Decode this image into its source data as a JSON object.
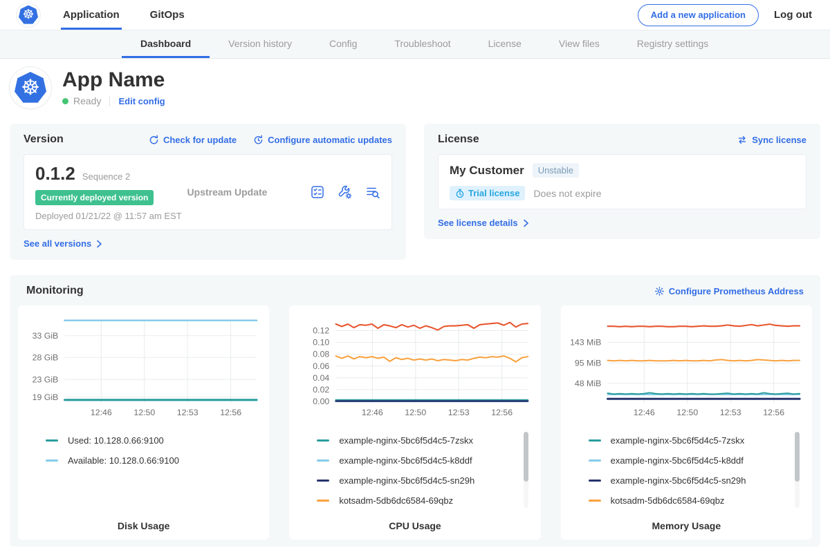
{
  "topnav": {
    "tabs": [
      {
        "label": "Application",
        "active": true
      },
      {
        "label": "GitOps",
        "active": false
      }
    ],
    "add_app_button": "Add a new application",
    "logout": "Log out"
  },
  "subnav": {
    "tabs": [
      "Dashboard",
      "Version history",
      "Config",
      "Troubleshoot",
      "License",
      "View files",
      "Registry settings"
    ],
    "active": "Dashboard"
  },
  "app_header": {
    "title": "App Name",
    "status": "Ready",
    "edit_config": "Edit config"
  },
  "version_card": {
    "title": "Version",
    "check_for_update": "Check for update",
    "configure_auto_updates": "Configure automatic updates",
    "version": "0.1.2",
    "sequence": "Sequence 2",
    "deployed_badge": "Currently deployed version",
    "deployed_at": "Deployed 01/21/22 @ 11:57 am EST",
    "update_type": "Upstream Update",
    "see_all": "See all versions"
  },
  "license_card": {
    "title": "License",
    "sync": "Sync license",
    "customer": "My Customer",
    "channel_badge": "Unstable",
    "type_badge": "Trial license",
    "expiry": "Does not expire",
    "see_details": "See license details"
  },
  "monitoring": {
    "title": "Monitoring",
    "configure_prometheus": "Configure Prometheus Address"
  },
  "colors": {
    "accent_blue": "#326de6",
    "k8s_blue": "#3371e3",
    "deployed_badge_green": "#3ec18f",
    "ready_dot_green": "#44c474",
    "teal": "#2a9d9d",
    "light_blue": "#85cbea",
    "navy": "#24336e",
    "orange": "#f9a13e",
    "red_orange": "#e8562e"
  },
  "chart_data": [
    {
      "type": "line",
      "title": "Disk Usage",
      "ylim": [
        17.6,
        36.7
      ],
      "y_ticks": [
        {
          "v": 33,
          "label": "33 GiB"
        },
        {
          "v": 28,
          "label": "28 GiB"
        },
        {
          "v": 23,
          "label": "23 GiB"
        },
        {
          "v": 19,
          "label": "19 GiB"
        }
      ],
      "x_ticks": [
        {
          "f": 0.19,
          "label": "12:46"
        },
        {
          "f": 0.415,
          "label": "12:50"
        },
        {
          "f": 0.64,
          "label": "12:53"
        },
        {
          "f": 0.865,
          "label": "12:56"
        }
      ],
      "series": [
        {
          "name": "Available: 10.128.0.66:9100",
          "color": "#85cbea",
          "w": 2.5,
          "values": [
            36.45,
            36.45
          ]
        },
        {
          "name": "Used: 10.128.0.66:9100",
          "color": "#2a9d9d",
          "w": 3,
          "values": [
            18.35,
            18.35
          ]
        }
      ],
      "legend": [
        {
          "label": "Used: 10.128.0.66:9100",
          "color": "#2a9d9d"
        },
        {
          "label": "Available: 10.128.0.66:9100",
          "color": "#85cbea"
        }
      ],
      "has_scrollbar": false
    },
    {
      "type": "line",
      "title": "CPU Usage",
      "ylim": [
        -0.003,
        0.139
      ],
      "y_ticks": [
        {
          "v": 0.12,
          "label": "0.12"
        },
        {
          "v": 0.1,
          "label": "0.10"
        },
        {
          "v": 0.08,
          "label": "0.08"
        },
        {
          "v": 0.06,
          "label": "0.06"
        },
        {
          "v": 0.04,
          "label": "0.04"
        },
        {
          "v": 0.02,
          "label": "0.02"
        },
        {
          "v": 0.0,
          "label": "0.00"
        }
      ],
      "x_ticks": [
        {
          "f": 0.19,
          "label": "12:46"
        },
        {
          "f": 0.415,
          "label": "12:50"
        },
        {
          "f": 0.64,
          "label": "12:53"
        },
        {
          "f": 0.865,
          "label": "12:56"
        }
      ],
      "series": [
        {
          "name": "",
          "color": "#e8562e",
          "w": 2,
          "values": [
            0.131,
            0.127,
            0.131,
            0.125,
            0.13,
            0.129,
            0.131,
            0.124,
            0.13,
            0.128,
            0.125,
            0.13,
            0.126,
            0.129,
            0.124,
            0.128,
            0.125,
            0.121,
            0.127,
            0.128,
            0.128,
            0.129,
            0.13,
            0.124,
            0.13,
            0.131,
            0.132,
            0.133,
            0.129,
            0.134,
            0.126,
            0.131,
            0.132
          ]
        },
        {
          "name": "kotsadm-5db6dc6584-69qbz",
          "color": "#f9a13e",
          "w": 2,
          "values": [
            0.077,
            0.073,
            0.077,
            0.072,
            0.076,
            0.074,
            0.076,
            0.073,
            0.075,
            0.068,
            0.074,
            0.071,
            0.073,
            0.07,
            0.072,
            0.07,
            0.072,
            0.069,
            0.071,
            0.07,
            0.069,
            0.071,
            0.07,
            0.073,
            0.075,
            0.074,
            0.076,
            0.075,
            0.077,
            0.073,
            0.067,
            0.074,
            0.076
          ]
        },
        {
          "name": "example-nginx-5bc6f5d4c5-k8ddf",
          "color": "#85cbea",
          "w": 2,
          "values": [
            0.0015,
            0.0015
          ]
        },
        {
          "name": "example-nginx-5bc6f5d4c5-7zskx",
          "color": "#2a9d9d",
          "w": 2,
          "values": [
            0.0025,
            0.0025
          ]
        },
        {
          "name": "example-nginx-5bc6f5d4c5-sn29h",
          "color": "#24336e",
          "w": 2.5,
          "values": [
            0.0005,
            0.0005
          ]
        }
      ],
      "legend": [
        {
          "label": "example-nginx-5bc6f5d4c5-7zskx",
          "color": "#2a9d9d"
        },
        {
          "label": "example-nginx-5bc6f5d4c5-k8ddf",
          "color": "#85cbea"
        },
        {
          "label": "example-nginx-5bc6f5d4c5-sn29h",
          "color": "#24336e"
        },
        {
          "label": "kotsadm-5db6dc6584-69qbz",
          "color": "#f9a13e"
        }
      ],
      "has_scrollbar": true
    },
    {
      "type": "line",
      "title": "Memory Usage",
      "ylim": [
        2,
        196
      ],
      "y_ticks": [
        {
          "v": 143,
          "label": "143 MiB"
        },
        {
          "v": 95,
          "label": "95 MiB"
        },
        {
          "v": 48,
          "label": "48 MiB"
        }
      ],
      "x_ticks": [
        {
          "f": 0.19,
          "label": "12:46"
        },
        {
          "f": 0.415,
          "label": "12:50"
        },
        {
          "f": 0.64,
          "label": "12:53"
        },
        {
          "f": 0.865,
          "label": "12:56"
        }
      ],
      "series": [
        {
          "name": "",
          "color": "#e8562e",
          "w": 2,
          "values": [
            180,
            180,
            179,
            180,
            179,
            180,
            180,
            179,
            180,
            180,
            179,
            179,
            180,
            180,
            179,
            180,
            181,
            180,
            180,
            181,
            183,
            181,
            180,
            182,
            184,
            181,
            183,
            185,
            182,
            181,
            180,
            181,
            181
          ]
        },
        {
          "name": "kotsadm-5db6dc6584-69qbz",
          "color": "#f9a13e",
          "w": 2,
          "values": [
            101,
            100,
            101,
            100,
            101,
            100,
            100,
            101,
            100,
            100,
            100,
            101,
            100,
            101,
            100,
            100,
            101,
            100,
            102,
            103,
            101,
            100,
            101,
            100,
            101,
            103,
            102,
            101,
            100,
            101,
            100,
            101,
            101
          ]
        },
        {
          "name": "example-nginx-5bc6f5d4c5-k8ddf",
          "color": "#85cbea",
          "w": 2,
          "values": [
            22,
            22
          ]
        },
        {
          "name": "example-nginx-5bc6f5d4c5-7zskx",
          "color": "#2a9d9d",
          "w": 2,
          "values": [
            25,
            23,
            24,
            23,
            24,
            23,
            24,
            26,
            24,
            23,
            24,
            23,
            24,
            23,
            24,
            23,
            24,
            23,
            23,
            24,
            25,
            23,
            24,
            23,
            24,
            23,
            26,
            24,
            23,
            24,
            25,
            23,
            24
          ]
        },
        {
          "name": "example-nginx-5bc6f5d4c5-sn29h",
          "color": "#24336e",
          "w": 3,
          "values": [
            12,
            12
          ]
        }
      ],
      "legend": [
        {
          "label": "example-nginx-5bc6f5d4c5-7zskx",
          "color": "#2a9d9d"
        },
        {
          "label": "example-nginx-5bc6f5d4c5-k8ddf",
          "color": "#85cbea"
        },
        {
          "label": "example-nginx-5bc6f5d4c5-sn29h",
          "color": "#24336e"
        },
        {
          "label": "kotsadm-5db6dc6584-69qbz",
          "color": "#f9a13e"
        }
      ],
      "has_scrollbar": true
    }
  ]
}
